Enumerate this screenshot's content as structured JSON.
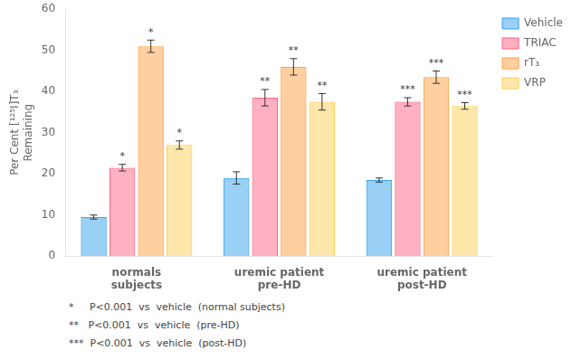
{
  "chart_data": {
    "type": "bar",
    "categories": [
      "normals\nsubjects",
      "uremic patient\npre-HD",
      "uremic patient\npost-HD"
    ],
    "series": [
      {
        "name": "Vehicle",
        "values": [
          9.5,
          19.0,
          18.5
        ],
        "errors": [
          0.5,
          1.5,
          0.5
        ]
      },
      {
        "name": "TRIAC",
        "values": [
          21.5,
          38.5,
          37.5
        ],
        "errors": [
          0.8,
          2.0,
          1.0
        ],
        "labels": [
          "*",
          "**",
          "***"
        ]
      },
      {
        "name": "rT₃",
        "values": [
          51.0,
          46.0,
          43.5
        ],
        "errors": [
          1.5,
          2.0,
          1.5
        ],
        "labels": [
          "*",
          "**",
          "***"
        ]
      },
      {
        "name": "VRP",
        "values": [
          27.0,
          37.5,
          36.5
        ],
        "errors": [
          1.0,
          2.0,
          0.8
        ],
        "labels": [
          "*",
          "**",
          "***"
        ]
      }
    ],
    "ylabel": "Per Cent [¹²⁵I]T₃\nRemaining",
    "ylim": [
      0,
      60
    ],
    "yticks": [
      0,
      10,
      20,
      30,
      40,
      50,
      60
    ],
    "grid": false,
    "legend": "right",
    "annotations": [
      "*     P<0.001  vs  vehicle  (normal subjects)",
      "**   P<0.001  vs  vehicle  (pre-HD)",
      "***  P<0.001  vs  vehicle  (post-HD)"
    ]
  }
}
